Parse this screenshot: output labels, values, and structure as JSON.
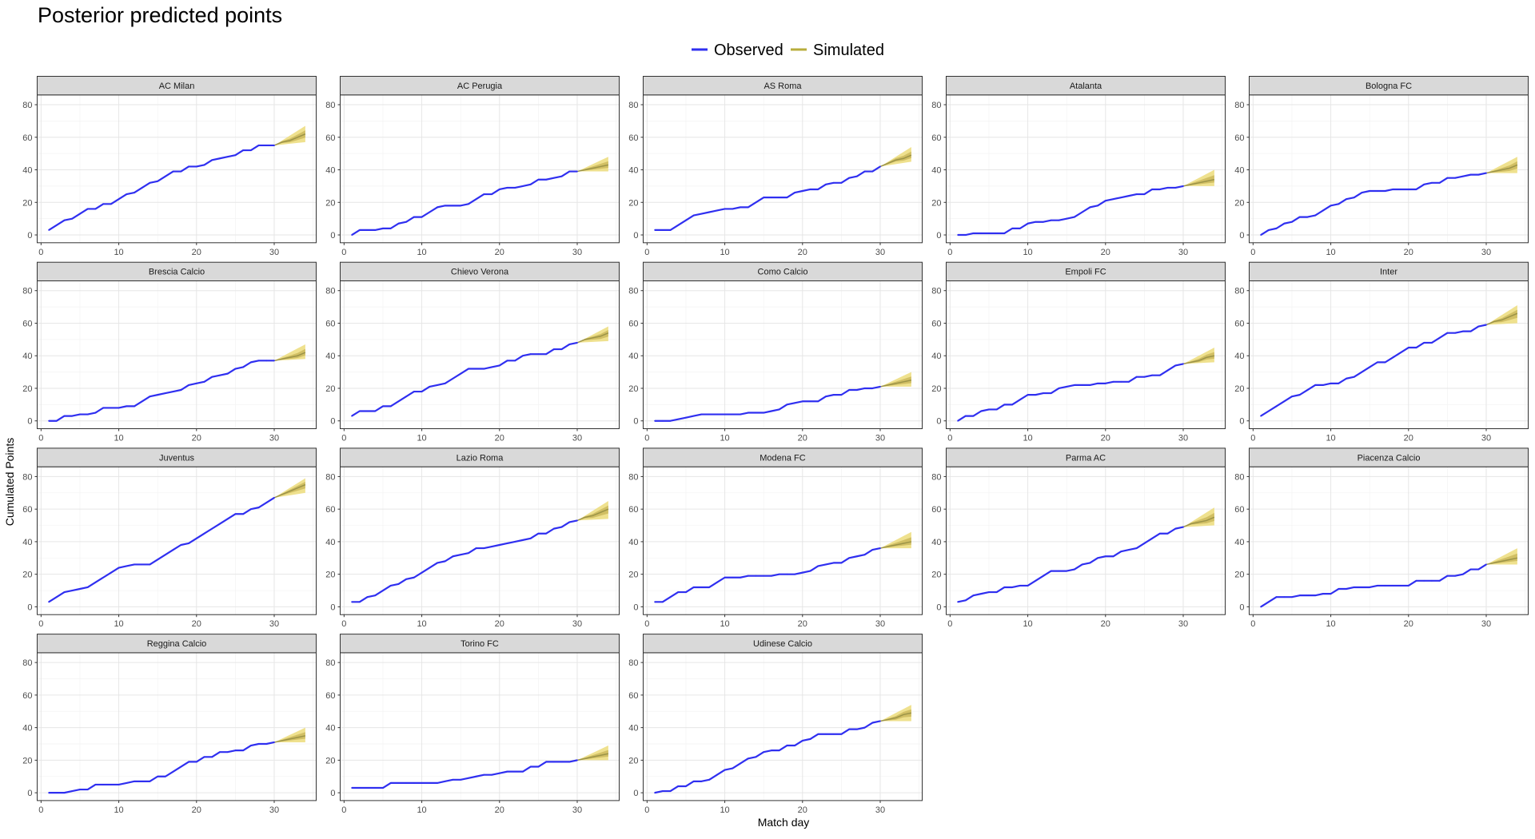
{
  "title": "Posterior predicted points",
  "legend": {
    "items": [
      {
        "label": "Observed",
        "color": "#2f2ff0"
      },
      {
        "label": "Simulated",
        "color": "#b8ad3c"
      }
    ]
  },
  "chart_data": {
    "type": "line",
    "facet": "team",
    "xlabel": "Match day",
    "ylabel": "Cumulated Points",
    "xlim": [
      -0.5,
      35.4
    ],
    "ylim": [
      -4.8,
      86
    ],
    "x_ticks": [
      0,
      10,
      20,
      30
    ],
    "y_ticks": [
      0,
      20,
      40,
      60,
      80
    ],
    "grid": true,
    "legend_position": "top",
    "observed_days": [
      1,
      2,
      3,
      4,
      5,
      6,
      7,
      8,
      9,
      10,
      11,
      12,
      13,
      14,
      15,
      16,
      17,
      18,
      19,
      20,
      21,
      22,
      23,
      24,
      25,
      26,
      27,
      28,
      29,
      30
    ],
    "simulated_days": [
      30,
      31,
      32,
      33,
      34
    ],
    "colors": {
      "observed": "#2f2ff0",
      "sim_band_95": "#ecdc7a",
      "sim_band_50": "#c9b65a",
      "sim_median": "#9c9448"
    },
    "panels": [
      {
        "team": "AC Milan",
        "observed": [
          3,
          6,
          9,
          10,
          13,
          16,
          16,
          19,
          19,
          22,
          25,
          26,
          29,
          32,
          33,
          36,
          39,
          39,
          42,
          42,
          43,
          46,
          47,
          48,
          49,
          52,
          52,
          55,
          55,
          55
        ],
        "sim_median": [
          55,
          57,
          58,
          60,
          62
        ],
        "sim_95_end": [
          57,
          67
        ]
      },
      {
        "team": "AC Perugia",
        "observed": [
          0,
          3,
          3,
          3,
          4,
          4,
          7,
          8,
          11,
          11,
          14,
          17,
          18,
          18,
          18,
          19,
          22,
          25,
          25,
          28,
          29,
          29,
          30,
          31,
          34,
          34,
          35,
          36,
          39,
          39
        ],
        "sim_median": [
          39,
          40,
          41,
          42,
          43
        ],
        "sim_95_end": [
          39,
          48
        ]
      },
      {
        "team": "AS Roma",
        "observed": [
          3,
          3,
          3,
          6,
          9,
          12,
          13,
          14,
          15,
          16,
          16,
          17,
          17,
          20,
          23,
          23,
          23,
          23,
          26,
          27,
          28,
          28,
          31,
          32,
          32,
          35,
          36,
          39,
          39,
          42
        ],
        "sim_median": [
          42,
          44,
          46,
          47,
          49
        ],
        "sim_95_end": [
          45,
          54
        ]
      },
      {
        "team": "Atalanta",
        "observed": [
          0,
          0,
          1,
          1,
          1,
          1,
          1,
          4,
          4,
          7,
          8,
          8,
          9,
          9,
          10,
          11,
          14,
          17,
          18,
          21,
          22,
          23,
          24,
          25,
          25,
          28,
          28,
          29,
          29,
          30
        ],
        "sim_median": [
          30,
          31,
          32,
          33,
          34
        ],
        "sim_95_end": [
          30,
          40
        ]
      },
      {
        "team": "Bologna FC",
        "observed": [
          0,
          3,
          4,
          7,
          8,
          11,
          11,
          12,
          15,
          18,
          19,
          22,
          23,
          26,
          27,
          27,
          27,
          28,
          28,
          28,
          28,
          31,
          32,
          32,
          35,
          35,
          36,
          37,
          37,
          38
        ],
        "sim_median": [
          38,
          39,
          40,
          41,
          43
        ],
        "sim_95_end": [
          38,
          48
        ]
      },
      {
        "team": "Brescia Calcio",
        "observed": [
          0,
          0,
          3,
          3,
          4,
          4,
          5,
          8,
          8,
          8,
          9,
          9,
          12,
          15,
          16,
          17,
          18,
          19,
          22,
          23,
          24,
          27,
          28,
          29,
          32,
          33,
          36,
          37,
          37,
          37
        ],
        "sim_median": [
          37,
          38,
          39,
          40,
          42
        ],
        "sim_95_end": [
          38,
          47
        ]
      },
      {
        "team": "Chievo Verona",
        "observed": [
          3,
          6,
          6,
          6,
          9,
          9,
          12,
          15,
          18,
          18,
          21,
          22,
          23,
          26,
          29,
          32,
          32,
          32,
          33,
          34,
          37,
          37,
          40,
          41,
          41,
          41,
          44,
          44,
          47,
          48
        ],
        "sim_median": [
          48,
          50,
          51,
          52,
          54
        ],
        "sim_95_end": [
          49,
          58
        ]
      },
      {
        "team": "Como Calcio",
        "observed": [
          0,
          0,
          0,
          1,
          2,
          3,
          4,
          4,
          4,
          4,
          4,
          4,
          5,
          5,
          5,
          6,
          7,
          10,
          11,
          12,
          12,
          12,
          15,
          16,
          16,
          19,
          19,
          20,
          20,
          21
        ],
        "sim_median": [
          21,
          22,
          23,
          24,
          25
        ],
        "sim_95_end": [
          21,
          30
        ]
      },
      {
        "team": "Empoli FC",
        "observed": [
          0,
          3,
          3,
          6,
          7,
          7,
          10,
          10,
          13,
          16,
          16,
          17,
          17,
          20,
          21,
          22,
          22,
          22,
          23,
          23,
          24,
          24,
          24,
          27,
          27,
          28,
          28,
          31,
          34,
          35
        ],
        "sim_median": [
          35,
          36,
          37,
          39,
          40
        ],
        "sim_95_end": [
          36,
          45
        ]
      },
      {
        "team": "Inter",
        "observed": [
          3,
          6,
          9,
          12,
          15,
          16,
          19,
          22,
          22,
          23,
          23,
          26,
          27,
          30,
          33,
          36,
          36,
          39,
          42,
          45,
          45,
          48,
          48,
          51,
          54,
          54,
          55,
          55,
          58,
          59
        ],
        "sim_median": [
          59,
          61,
          62,
          64,
          66
        ],
        "sim_95_end": [
          60,
          71
        ]
      },
      {
        "team": "Juventus",
        "observed": [
          3,
          6,
          9,
          10,
          11,
          12,
          15,
          18,
          21,
          24,
          25,
          26,
          26,
          26,
          29,
          32,
          35,
          38,
          39,
          42,
          45,
          48,
          51,
          54,
          57,
          57,
          60,
          61,
          64,
          67
        ],
        "sim_median": [
          67,
          69,
          71,
          73,
          75
        ],
        "sim_95_end": [
          70,
          79
        ]
      },
      {
        "team": "Lazio Roma",
        "observed": [
          3,
          3,
          6,
          7,
          10,
          13,
          14,
          17,
          18,
          21,
          24,
          27,
          28,
          31,
          32,
          33,
          36,
          36,
          37,
          38,
          39,
          40,
          41,
          42,
          45,
          45,
          48,
          49,
          52,
          53
        ],
        "sim_median": [
          53,
          55,
          56,
          58,
          60
        ],
        "sim_95_end": [
          54,
          65
        ]
      },
      {
        "team": "Modena FC",
        "observed": [
          3,
          3,
          6,
          9,
          9,
          12,
          12,
          12,
          15,
          18,
          18,
          18,
          19,
          19,
          19,
          19,
          20,
          20,
          20,
          21,
          22,
          25,
          26,
          27,
          27,
          30,
          31,
          32,
          35,
          36
        ],
        "sim_median": [
          36,
          37,
          38,
          39,
          40
        ],
        "sim_95_end": [
          36,
          46
        ]
      },
      {
        "team": "Parma AC",
        "observed": [
          3,
          4,
          7,
          8,
          9,
          9,
          12,
          12,
          13,
          13,
          16,
          19,
          22,
          22,
          22,
          23,
          26,
          27,
          30,
          31,
          31,
          34,
          35,
          36,
          39,
          42,
          45,
          45,
          48,
          49
        ],
        "sim_median": [
          49,
          51,
          52,
          53,
          55
        ],
        "sim_95_end": [
          50,
          61
        ]
      },
      {
        "team": "Piacenza Calcio",
        "observed": [
          0,
          3,
          6,
          6,
          6,
          7,
          7,
          7,
          8,
          8,
          11,
          11,
          12,
          12,
          12,
          13,
          13,
          13,
          13,
          13,
          16,
          16,
          16,
          16,
          19,
          19,
          20,
          23,
          23,
          26
        ],
        "sim_median": [
          26,
          27,
          28,
          29,
          30
        ],
        "sim_95_end": [
          26,
          36
        ]
      },
      {
        "team": "Reggina Calcio",
        "observed": [
          0,
          0,
          0,
          1,
          2,
          2,
          5,
          5,
          5,
          5,
          6,
          7,
          7,
          7,
          10,
          10,
          13,
          16,
          19,
          19,
          22,
          22,
          25,
          25,
          26,
          26,
          29,
          30,
          30,
          31
        ],
        "sim_median": [
          31,
          32,
          33,
          34,
          35
        ],
        "sim_95_end": [
          31,
          40
        ]
      },
      {
        "team": "Torino FC",
        "observed": [
          3,
          3,
          3,
          3,
          3,
          6,
          6,
          6,
          6,
          6,
          6,
          6,
          7,
          8,
          8,
          9,
          10,
          11,
          11,
          12,
          13,
          13,
          13,
          16,
          16,
          19,
          19,
          19,
          19,
          20
        ],
        "sim_median": [
          20,
          21,
          22,
          23,
          24
        ],
        "sim_95_end": [
          20,
          29
        ]
      },
      {
        "team": "Udinese Calcio",
        "observed": [
          0,
          1,
          1,
          4,
          4,
          7,
          7,
          8,
          11,
          14,
          15,
          18,
          21,
          22,
          25,
          26,
          26,
          29,
          29,
          32,
          33,
          36,
          36,
          36,
          36,
          39,
          39,
          40,
          43,
          44
        ],
        "sim_median": [
          44,
          45,
          46,
          48,
          49
        ],
        "sim_95_end": [
          44,
          54
        ]
      }
    ]
  }
}
